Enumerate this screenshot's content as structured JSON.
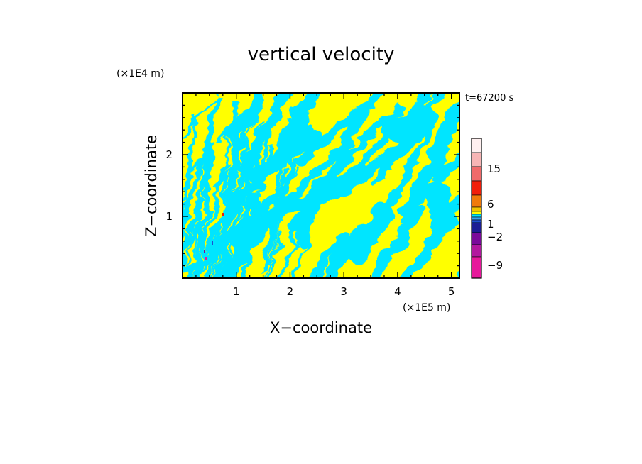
{
  "chart_data": {
    "type": "heatmap",
    "title": "vertical velocity",
    "xlabel": "X−coordinate",
    "ylabel": "Z−coordinate",
    "x_unit": "(×1E5 m)",
    "y_unit": "(×1E4 m)",
    "time_label": "t=67200 s",
    "xlim": [
      0,
      5.15
    ],
    "ylim": [
      0,
      3.0
    ],
    "x_ticks": [
      1,
      2,
      3,
      4,
      5
    ],
    "y_ticks": [
      1,
      2
    ],
    "colorbar": {
      "tick_labels": [
        "15",
        "6",
        "1",
        "−2",
        "−9"
      ],
      "tick_values": [
        15,
        6,
        1,
        -2,
        -9
      ],
      "levels": [
        -15,
        -9,
        -6,
        -4,
        -2,
        -1,
        0,
        1,
        2,
        4,
        6,
        9,
        15,
        25
      ],
      "colors": [
        "#e6199b",
        "#b2189e",
        "#7a0a9a",
        "#1c1c94",
        "#1f4fd1",
        "#33a3f0",
        "#00e5ff",
        "#ffff00",
        "#f2c300",
        "#f07a0a",
        "#f01e0a",
        "#f06a6a",
        "#f7b5b5",
        "#fff0f0"
      ]
    },
    "field_description": "alternating bands of slightly negative (cyan) and slightly positive (yellow) vertical velocity, tilted, with fine-scale structure on the left"
  }
}
